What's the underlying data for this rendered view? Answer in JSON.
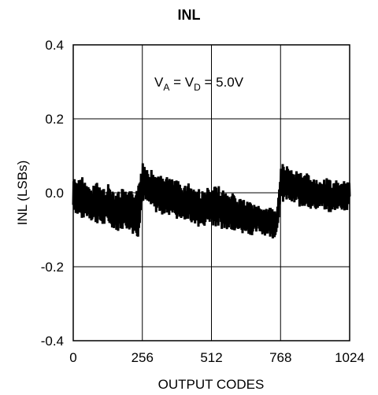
{
  "chart_data": {
    "type": "line",
    "title": "INL",
    "xlabel": "OUTPUT CODES",
    "ylabel": "INL (LSBs)",
    "xlim": [
      0,
      1024
    ],
    "ylim": [
      -0.4,
      0.4
    ],
    "x_ticks": [
      0,
      256,
      512,
      768,
      1024
    ],
    "x_tick_labels": [
      "0",
      "256",
      "512",
      "768",
      "1024"
    ],
    "y_ticks": [
      0.4,
      0.2,
      0.0,
      -0.2,
      -0.4
    ],
    "y_tick_labels": [
      "0.4",
      "0.2",
      "0.0",
      "-0.2",
      "-0.4"
    ],
    "grid": true,
    "annotation": {
      "v1": "V",
      "sub1": "A",
      "eq1": " = V",
      "sub2": "D",
      "eq2": " = 5.0V"
    },
    "series": [
      {
        "x": [
          0,
          16,
          32,
          48,
          64,
          80,
          96,
          112,
          128,
          144,
          160,
          176,
          192,
          208,
          224,
          240,
          256,
          272,
          288,
          304,
          320,
          336,
          352,
          368,
          384,
          400,
          416,
          432,
          448,
          464,
          480,
          496,
          512,
          528,
          544,
          560,
          576,
          592,
          608,
          624,
          640,
          656,
          672,
          688,
          704,
          720,
          736,
          752,
          768,
          784,
          800,
          816,
          832,
          848,
          864,
          880,
          896,
          912,
          928,
          944,
          960,
          976,
          992,
          1008,
          1024
        ],
        "y_min": [
          -0.05,
          -0.07,
          -0.08,
          -0.07,
          -0.08,
          -0.09,
          -0.09,
          -0.1,
          -0.09,
          -0.1,
          -0.11,
          -0.11,
          -0.1,
          -0.11,
          -0.12,
          -0.13,
          -0.03,
          -0.04,
          -0.05,
          -0.06,
          -0.06,
          -0.07,
          -0.07,
          -0.06,
          -0.08,
          -0.08,
          -0.08,
          -0.09,
          -0.09,
          -0.1,
          -0.1,
          -0.09,
          -0.09,
          -0.1,
          -0.1,
          -0.11,
          -0.1,
          -0.11,
          -0.11,
          -0.12,
          -0.11,
          -0.12,
          -0.12,
          -0.11,
          -0.12,
          -0.12,
          -0.13,
          -0.12,
          -0.04,
          -0.03,
          -0.03,
          -0.04,
          -0.04,
          -0.05,
          -0.04,
          -0.05,
          -0.05,
          -0.05,
          -0.05,
          -0.06,
          -0.06,
          -0.05,
          -0.05,
          -0.06,
          -0.05
        ],
        "y_max": [
          0.05,
          0.04,
          0.05,
          0.03,
          0.02,
          0.04,
          0.03,
          0.02,
          0.03,
          0.02,
          0.01,
          0.02,
          0.01,
          0.01,
          0.02,
          0.03,
          0.1,
          0.08,
          0.07,
          0.06,
          0.05,
          0.06,
          0.05,
          0.04,
          0.04,
          0.03,
          0.03,
          0.04,
          0.02,
          0.02,
          0.01,
          0.02,
          0.01,
          0.03,
          0.02,
          0.01,
          0.0,
          0.01,
          -0.01,
          0.0,
          -0.02,
          -0.01,
          -0.03,
          -0.02,
          -0.04,
          -0.03,
          -0.04,
          -0.05,
          0.08,
          0.09,
          0.07,
          0.06,
          0.08,
          0.05,
          0.06,
          0.05,
          0.04,
          0.05,
          0.04,
          0.05,
          0.03,
          0.04,
          0.03,
          0.04,
          0.03
        ]
      }
    ]
  }
}
